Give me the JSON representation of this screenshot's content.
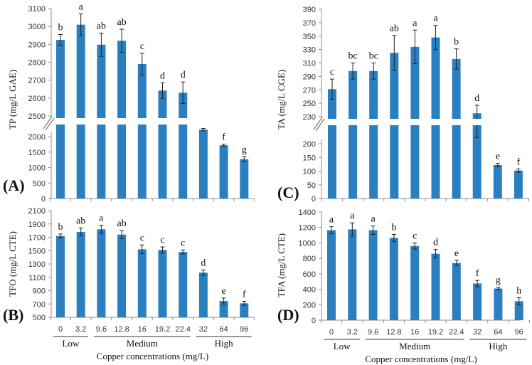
{
  "colors": {
    "bar": "#2a7fc0",
    "axis": "#8c8c8c",
    "error": "#222222"
  },
  "shared": {
    "xlabel": "Copper concentrations (mg/L)",
    "groups": [
      {
        "label": "Low",
        "from": 0,
        "to": 1
      },
      {
        "label": "Medium",
        "from": 2,
        "to": 6
      },
      {
        "label": "High",
        "from": 7,
        "to": 9
      }
    ]
  },
  "chart_data": [
    {
      "panel": "(A)",
      "type": "bar",
      "ylabel": "TP (mg/L GAE)",
      "broken_axis": true,
      "categories": [
        "0",
        "3.2",
        "9.6",
        "12.8",
        "16",
        "19.2",
        "22.4",
        "32",
        "64",
        "96"
      ],
      "values": [
        2925,
        3010,
        2898,
        2920,
        2790,
        2642,
        2630,
        2225,
        1720,
        1270
      ],
      "errors": [
        30,
        60,
        65,
        65,
        60,
        43,
        60,
        40,
        35,
        80
      ],
      "letters": [
        "b",
        "a",
        "ab",
        "ab",
        "c",
        "d",
        "d",
        "e",
        "f",
        "g"
      ],
      "segments": [
        {
          "range": [
            0,
            2000
          ],
          "ticks": [
            0,
            500,
            1000,
            1500,
            2000
          ]
        },
        {
          "range": [
            2500,
            3100
          ],
          "ticks": [
            2500,
            2600,
            2700,
            2800,
            2900,
            3000,
            3100
          ]
        }
      ]
    },
    {
      "panel": "(B)",
      "type": "bar",
      "ylabel": "TFO (mg/L CTE)",
      "categories": [
        "0",
        "3.2",
        "9.6",
        "12.8",
        "16",
        "19.2",
        "22.4",
        "32",
        "64",
        "96"
      ],
      "values": [
        1720,
        1780,
        1820,
        1740,
        1520,
        1510,
        1480,
        1170,
        745,
        710
      ],
      "errors": [
        30,
        60,
        60,
        60,
        65,
        45,
        30,
        40,
        45,
        30
      ],
      "letters": [
        "b",
        "ab",
        "a",
        "ab",
        "c",
        "c",
        "c",
        "d",
        "e",
        "f"
      ],
      "segments": [
        {
          "range": [
            500,
            2100
          ],
          "ticks": [
            500,
            700,
            900,
            1100,
            1300,
            1500,
            1700,
            1900,
            2100
          ]
        }
      ]
    },
    {
      "panel": "(C)",
      "type": "bar",
      "ylabel": "TA (mg/L CGE)",
      "broken_axis": true,
      "categories": [
        "0",
        "3.2",
        "9.6",
        "12.8",
        "16",
        "19.2",
        "22.4",
        "32",
        "64",
        "96"
      ],
      "values": [
        271,
        298,
        298,
        325,
        334,
        348,
        316,
        235,
        122,
        102
      ],
      "errors": [
        15,
        12,
        12,
        26,
        25,
        18,
        15,
        12,
        6,
        6
      ],
      "letters": [
        "c",
        "bc",
        "bc",
        "ab",
        "a",
        "a",
        "b",
        "d",
        "e",
        "f"
      ],
      "segments": [
        {
          "range": [
            0,
            200
          ],
          "ticks": [
            0,
            50,
            100,
            150,
            200
          ]
        },
        {
          "range": [
            230,
            390
          ],
          "ticks": [
            230,
            250,
            270,
            290,
            310,
            330,
            350,
            370,
            390
          ]
        }
      ]
    },
    {
      "panel": "(D)",
      "type": "bar",
      "ylabel": "TFA (mg/L CTE)",
      "categories": [
        "0",
        "3.2",
        "9.6",
        "12.8",
        "16",
        "19.2",
        "22.4",
        "32",
        "64",
        "96"
      ],
      "values": [
        1165,
        1175,
        1165,
        1065,
        960,
        860,
        740,
        475,
        410,
        245
      ],
      "errors": [
        45,
        85,
        55,
        45,
        40,
        55,
        35,
        40,
        15,
        45
      ],
      "letters": [
        "a",
        "a",
        "a",
        "b",
        "c",
        "d",
        "e",
        "f",
        "g",
        "h"
      ],
      "segments": [
        {
          "range": [
            0,
            1400
          ],
          "ticks": [
            0,
            200,
            400,
            600,
            800,
            1000,
            1200,
            1400
          ]
        }
      ]
    }
  ]
}
